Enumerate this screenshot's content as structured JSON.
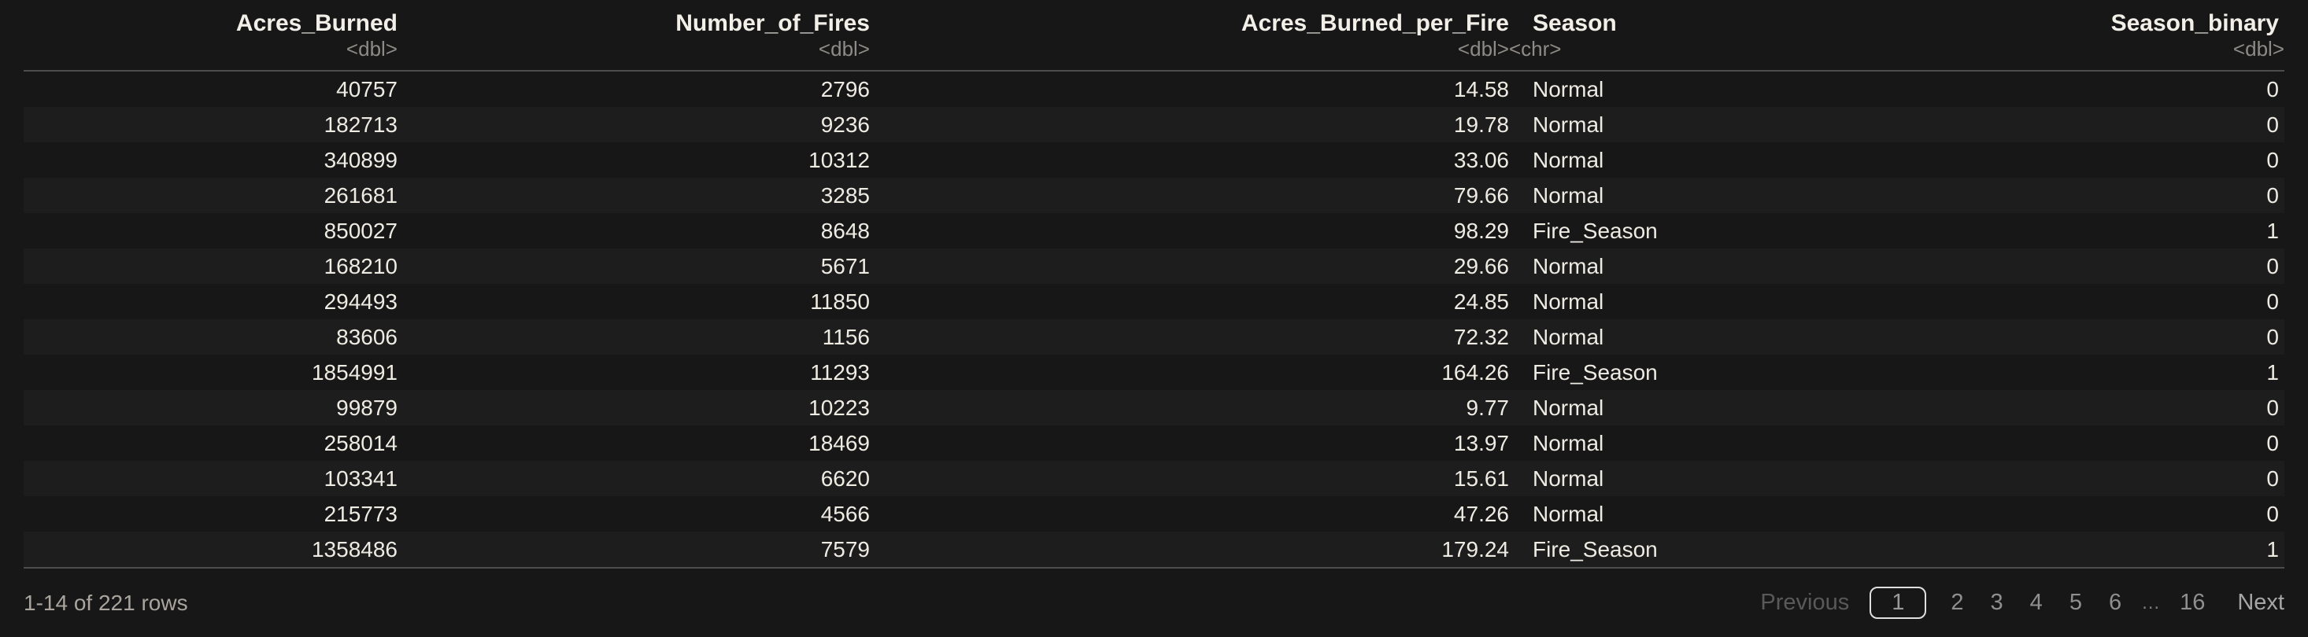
{
  "table": {
    "columns": [
      {
        "name": "Acres_Burned",
        "type": "<dbl>",
        "align": "right"
      },
      {
        "name": "Number_of_Fires",
        "type": "<dbl>",
        "align": "right"
      },
      {
        "name": "Acres_Burned_per_Fire",
        "type": "<dbl>",
        "align": "right"
      },
      {
        "name": "Season",
        "type": "<chr>",
        "align": "left"
      },
      {
        "name": "Season_binary",
        "type": "<dbl>",
        "align": "right"
      }
    ],
    "rows": [
      [
        "40757",
        "2796",
        "14.58",
        "Normal",
        "0"
      ],
      [
        "182713",
        "9236",
        "19.78",
        "Normal",
        "0"
      ],
      [
        "340899",
        "10312",
        "33.06",
        "Normal",
        "0"
      ],
      [
        "261681",
        "3285",
        "79.66",
        "Normal",
        "0"
      ],
      [
        "850027",
        "8648",
        "98.29",
        "Fire_Season",
        "1"
      ],
      [
        "168210",
        "5671",
        "29.66",
        "Normal",
        "0"
      ],
      [
        "294493",
        "11850",
        "24.85",
        "Normal",
        "0"
      ],
      [
        "83606",
        "1156",
        "72.32",
        "Normal",
        "0"
      ],
      [
        "1854991",
        "11293",
        "164.26",
        "Fire_Season",
        "1"
      ],
      [
        "99879",
        "10223",
        "9.77",
        "Normal",
        "0"
      ],
      [
        "258014",
        "18469",
        "13.97",
        "Normal",
        "0"
      ],
      [
        "103341",
        "6620",
        "15.61",
        "Normal",
        "0"
      ],
      [
        "215773",
        "4566",
        "47.26",
        "Normal",
        "0"
      ],
      [
        "1358486",
        "7579",
        "179.24",
        "Fire_Season",
        "1"
      ]
    ]
  },
  "footer": {
    "range_label": "1-14 of 221 rows",
    "pagination": {
      "previous_label": "Previous",
      "next_label": "Next",
      "current_page": "1",
      "pages": [
        "1",
        "2",
        "3",
        "4",
        "5",
        "6",
        "…",
        "16"
      ]
    }
  },
  "colors": {
    "background": "#171717",
    "row_stripe": "#1d1d1d",
    "rule": "#4d4d4d",
    "header_text": "#f2efe8",
    "type_text": "#8e8b86",
    "cell_text": "#eeebe3",
    "footer_text": "#a9a59e",
    "current_page_border": "#dfdfdf"
  }
}
